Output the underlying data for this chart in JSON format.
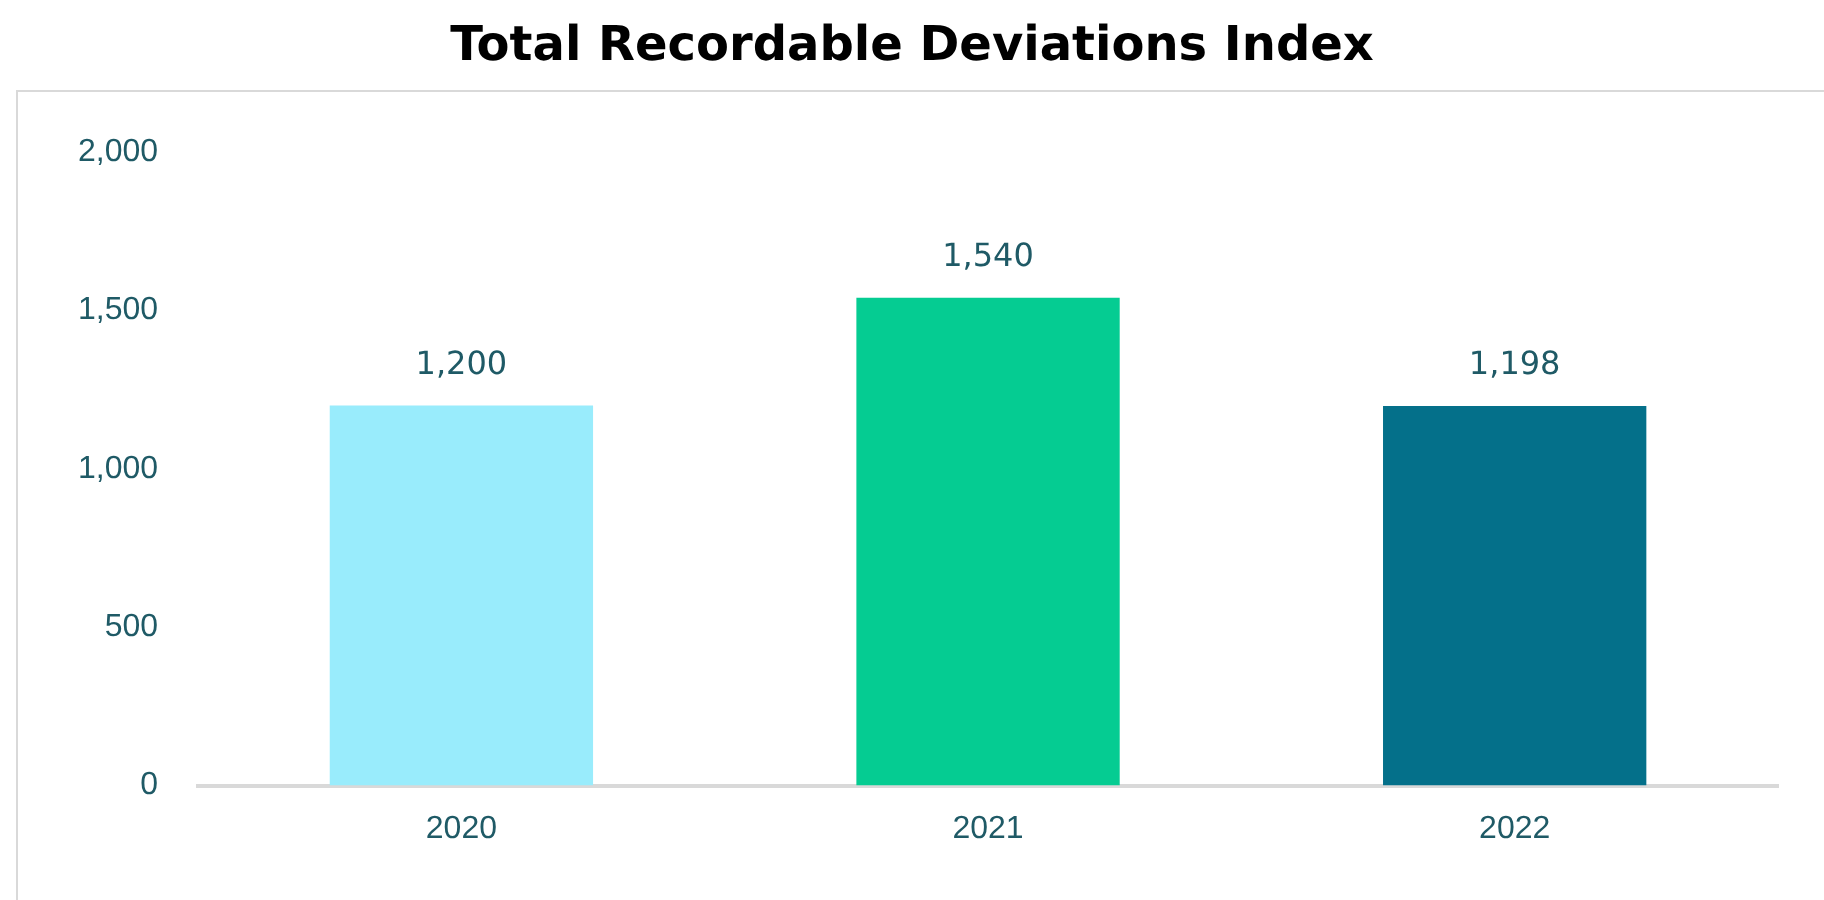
{
  "chart_data": {
    "type": "bar",
    "title": "Total Recordable Deviations Index",
    "categories": [
      "2020",
      "2021",
      "2022"
    ],
    "values": [
      1200,
      1540,
      1198
    ],
    "colors": [
      "#99ecfc",
      "#05cc92",
      "#04708a"
    ],
    "ylim": [
      0,
      2000
    ],
    "yticks": [
      {
        "value": 0,
        "label": "0"
      },
      {
        "value": 500,
        "label": "500"
      },
      {
        "value": 1000,
        "label": "1,000"
      },
      {
        "value": 1500,
        "label": "1,500"
      },
      {
        "value": 2000,
        "label": "2,000"
      }
    ],
    "value_labels": [
      "1,200",
      "1,540",
      "1,198"
    ],
    "grid": false,
    "legend": false
  }
}
